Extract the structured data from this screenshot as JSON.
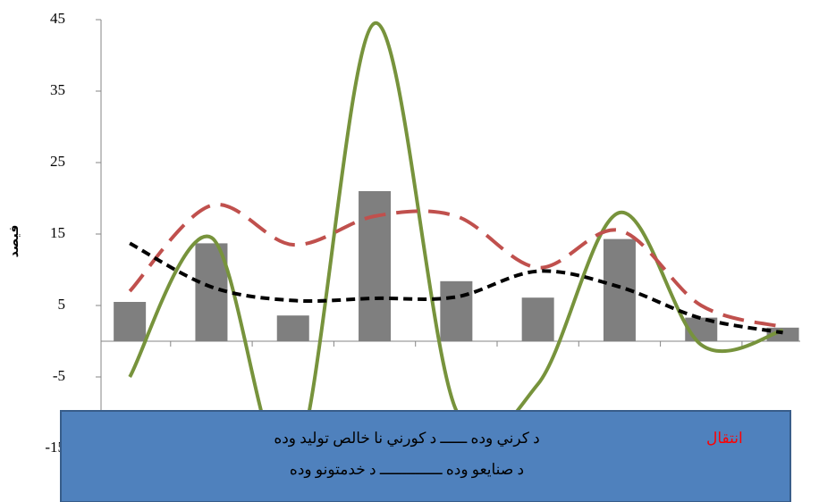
{
  "chart_data": {
    "type": "combo",
    "y_label": "فیصد",
    "categories": [
      null,
      null,
      null,
      null,
      null,
      null,
      null,
      null,
      null
    ],
    "ylim": [
      -15,
      45
    ],
    "yticks": [
      -15,
      -5,
      5,
      15,
      25,
      35,
      45
    ],
    "series": [
      {
        "type": "bar",
        "color": "#7f7f7f",
        "values": [
          5.5,
          13.7,
          3.6,
          21,
          8.4,
          6.1,
          14.3,
          3.3,
          1.9
        ]
      },
      {
        "type": "line",
        "color": "#77933c",
        "dashed": false,
        "values": [
          -5,
          14.5,
          -18,
          44.5,
          -9.7,
          -6,
          18,
          -0.5,
          1.5
        ]
      },
      {
        "type": "line",
        "color": "#c0504d",
        "dashed": true,
        "values": [
          7,
          19,
          13.5,
          17.5,
          17.5,
          10.3,
          15.5,
          5,
          2
        ]
      },
      {
        "type": "line",
        "color": "#000000",
        "dashed": true,
        "values": [
          13.7,
          7.6,
          5.7,
          6,
          6.2,
          9.8,
          7.6,
          3.2,
          1.2
        ]
      }
    ],
    "legend_box": {
      "highlight": "انتقال",
      "color": "#4f81bd",
      "lines": [
        "د کرني وده ــــــ د کورني نا خالص توليد وده",
        "د صنايعو وده ــــــــــــــ د خدمتونو وده"
      ]
    }
  }
}
